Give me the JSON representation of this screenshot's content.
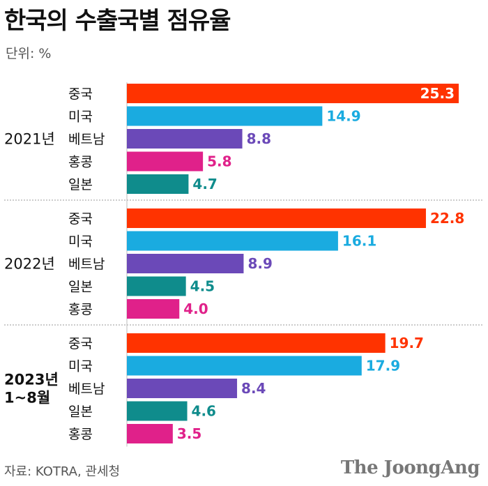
{
  "title": "한국의 수출국별 점유율",
  "unit": "단위: %",
  "source": "자료: KOTRA, 관세청",
  "logo": "The JoongAng",
  "colors": {
    "중국": "#ff3300",
    "미국": "#1aabe0",
    "베트남": "#6b49b8",
    "홍콩": "#e0218a",
    "일본": "#0f8c8c"
  },
  "chart_data": {
    "type": "bar",
    "orientation": "horizontal",
    "title": "한국의 수출국별 점유율",
    "unit": "%",
    "grid": false,
    "groups": [
      {
        "label_lines": [
          "2021년"
        ],
        "bold": false,
        "bars": [
          {
            "category": "중국",
            "value": 25.3
          },
          {
            "category": "미국",
            "value": 14.9
          },
          {
            "category": "베트남",
            "value": 8.8
          },
          {
            "category": "홍콩",
            "value": 5.8
          },
          {
            "category": "일본",
            "value": 4.7
          }
        ]
      },
      {
        "label_lines": [
          "2022년"
        ],
        "bold": false,
        "bars": [
          {
            "category": "중국",
            "value": 22.8
          },
          {
            "category": "미국",
            "value": 16.1
          },
          {
            "category": "베트남",
            "value": 8.9
          },
          {
            "category": "일본",
            "value": 4.5
          },
          {
            "category": "홍콩",
            "value": 4.0
          }
        ]
      },
      {
        "label_lines": [
          "2023년",
          "1~8월"
        ],
        "bold": true,
        "bars": [
          {
            "category": "중국",
            "value": 19.7
          },
          {
            "category": "미국",
            "value": 17.9
          },
          {
            "category": "베트남",
            "value": 8.4
          },
          {
            "category": "일본",
            "value": 4.6
          },
          {
            "category": "홍콩",
            "value": 3.5
          }
        ]
      }
    ]
  }
}
